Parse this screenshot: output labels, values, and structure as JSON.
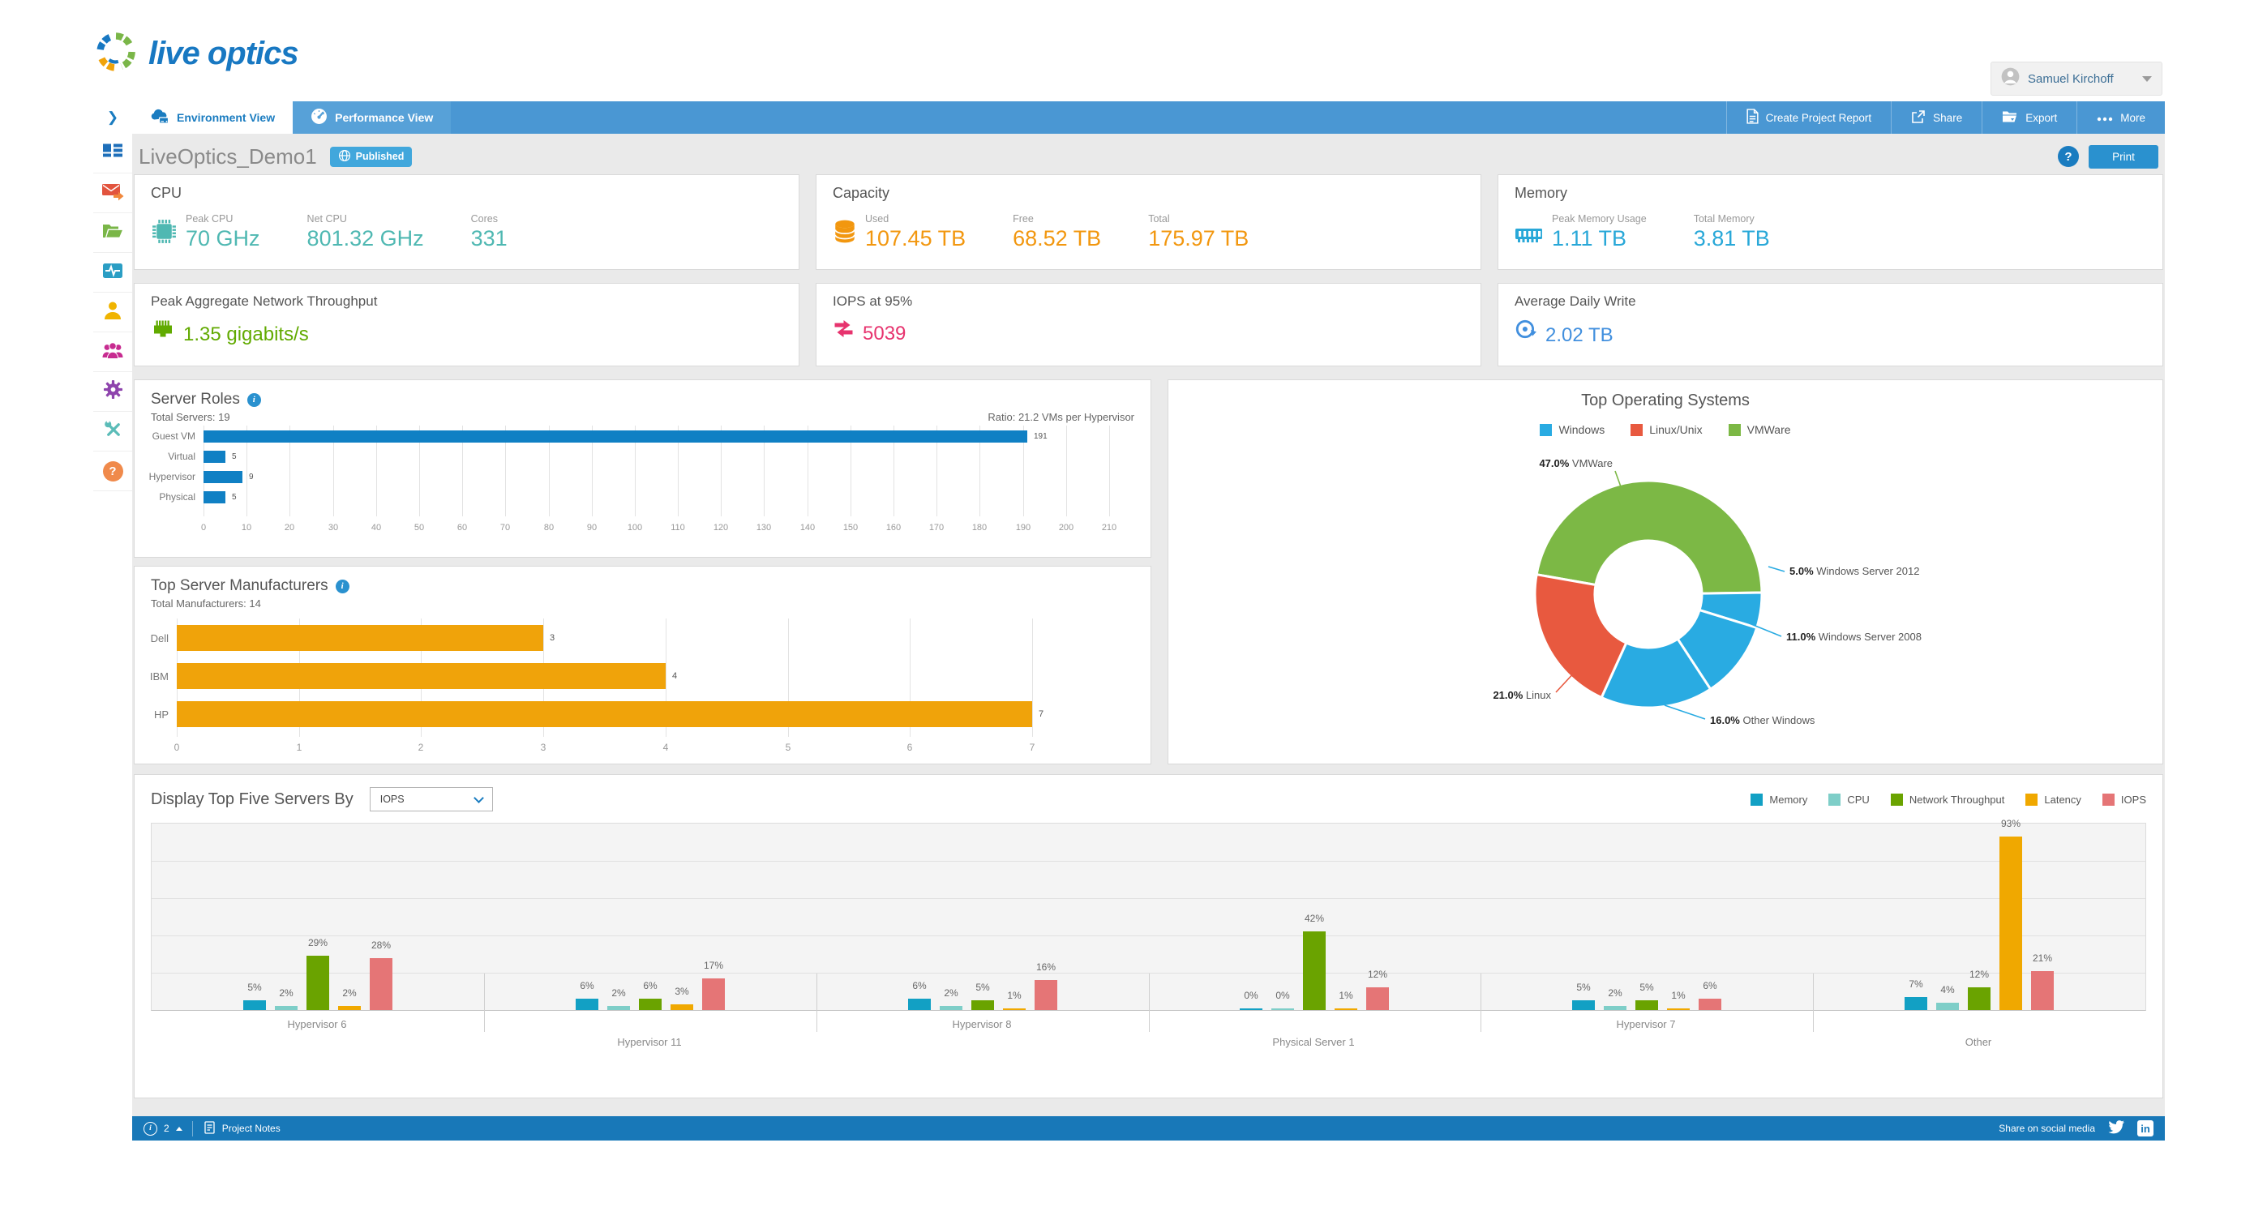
{
  "header": {
    "logo_text": "live optics",
    "user_name": "Samuel Kirchoff"
  },
  "navbar": {
    "collapse_icon": "❯",
    "tabs": [
      {
        "label": "Environment View",
        "icon": "cloud-server-icon",
        "active": true
      },
      {
        "label": "Performance View",
        "icon": "gauge-icon",
        "active": false
      }
    ],
    "actions": [
      {
        "label": "Create Project Report",
        "icon": "document-icon"
      },
      {
        "label": "Share",
        "icon": "share-icon"
      },
      {
        "label": "Export",
        "icon": "export-folder-icon"
      },
      {
        "label": "More",
        "icon": "ellipsis-icon"
      }
    ]
  },
  "sidebar": {
    "items": [
      {
        "icon": "dashboard-icon",
        "color": "#1e6fba"
      },
      {
        "icon": "mail-forward-icon",
        "color": "#e2543e"
      },
      {
        "icon": "open-folder-icon",
        "color": "#7ab648"
      },
      {
        "icon": "monitor-pulse-icon",
        "color": "#2b9ec4"
      },
      {
        "icon": "user-icon",
        "color": "#f0b400"
      },
      {
        "icon": "team-icon",
        "color": "#c72b90"
      },
      {
        "icon": "gear-icon",
        "color": "#8e44ad"
      },
      {
        "icon": "tools-icon",
        "color": "#5bbcb8"
      },
      {
        "icon": "help-icon",
        "color": "#f08a4b",
        "glyph": "?"
      }
    ]
  },
  "title_bar": {
    "project_name": "LiveOptics_Demo1",
    "status_badge": "Published",
    "help_label": "?",
    "print_label": "Print"
  },
  "stat_cards": {
    "cpu": {
      "title": "CPU",
      "color": "#4fb8b2",
      "metrics": [
        {
          "label": "Peak CPU",
          "value": "70 GHz"
        },
        {
          "label": "Net CPU",
          "value": "801.32 GHz"
        },
        {
          "label": "Cores",
          "value": "331"
        }
      ]
    },
    "capacity": {
      "title": "Capacity",
      "color": "#f2970f",
      "metrics": [
        {
          "label": "Used",
          "value": "107.45 TB"
        },
        {
          "label": "Free",
          "value": "68.52 TB"
        },
        {
          "label": "Total",
          "value": "175.97 TB"
        }
      ]
    },
    "memory": {
      "title": "Memory",
      "color": "#29a8d8",
      "metrics": [
        {
          "label": "Peak Memory Usage",
          "value": "1.11 TB"
        },
        {
          "label": "Total Memory",
          "value": "3.81 TB"
        }
      ]
    },
    "network": {
      "title": "Peak Aggregate Network Throughput",
      "color": "#61aa00",
      "value": "1.35 gigabits/s"
    },
    "iops": {
      "title": "IOPS at 95%",
      "color": "#e7336e",
      "value": "5039"
    },
    "daily_write": {
      "title": "Average Daily Write",
      "color": "#418fde",
      "value": "2.02 TB"
    }
  },
  "chart_data": [
    {
      "id": "server_roles",
      "type": "bar",
      "orientation": "horizontal",
      "title": "Server Roles",
      "subtitle_left": "Total Servers: 19",
      "subtitle_right": "Ratio: 21.2 VMs per Hypervisor",
      "categories": [
        "Guest VM",
        "Virtual",
        "Hypervisor",
        "Physical"
      ],
      "values": [
        191,
        5,
        9,
        5
      ],
      "xlim": [
        0,
        210
      ],
      "xticks_step": 10,
      "bar_color": "#1080c4",
      "grid": true
    },
    {
      "id": "top_server_manufacturers",
      "type": "bar",
      "orientation": "horizontal",
      "title": "Top Server Manufacturers",
      "subtitle_left": "Total Manufacturers: 14",
      "categories": [
        "Dell",
        "IBM",
        "HP"
      ],
      "values": [
        3,
        4,
        7
      ],
      "xlim": [
        0,
        7
      ],
      "xticks_step": 1,
      "bar_color": "#f0a30a",
      "grid": true
    },
    {
      "id": "top_operating_systems",
      "type": "pie",
      "donut": true,
      "title": "Top Operating Systems",
      "legend": [
        {
          "label": "Windows",
          "color": "#29abe2"
        },
        {
          "label": "Linux/Unix",
          "color": "#e8593f"
        },
        {
          "label": "VMWare",
          "color": "#7cb845"
        }
      ],
      "slices": [
        {
          "label": "VMWare",
          "pct": 47.0,
          "color": "#7cb845"
        },
        {
          "label": "Windows Server 2012",
          "pct": 5.0,
          "color": "#29abe2"
        },
        {
          "label": "Windows Server 2008",
          "pct": 11.0,
          "color": "#29abe2"
        },
        {
          "label": "Other Windows",
          "pct": 16.0,
          "color": "#29abe2"
        },
        {
          "label": "Linux",
          "pct": 21.0,
          "color": "#e8593f"
        }
      ],
      "start_angle_deg": 280
    },
    {
      "id": "top_five_servers",
      "type": "bar",
      "orientation": "vertical",
      "control_label": "Display Top Five Servers By",
      "control_value": "IOPS",
      "categories": [
        "Hypervisor 6",
        "Hypervisor 11",
        "Hypervisor 8",
        "Physical Server 1",
        "Hypervisor 7",
        "Other"
      ],
      "series": [
        {
          "name": "Memory",
          "color": "#12a0c4",
          "values": [
            5,
            6,
            6,
            0,
            5,
            7
          ]
        },
        {
          "name": "CPU",
          "color": "#7ecec8",
          "values": [
            2,
            2,
            2,
            0,
            2,
            4
          ]
        },
        {
          "name": "Network Throughput",
          "color": "#6aa300",
          "values": [
            29,
            6,
            5,
            42,
            5,
            12
          ]
        },
        {
          "name": "Latency",
          "color": "#f0a800",
          "values": [
            2,
            3,
            1,
            1,
            1,
            93
          ]
        },
        {
          "name": "IOPS",
          "color": "#e57576",
          "values": [
            28,
            17,
            16,
            12,
            6,
            21
          ]
        }
      ],
      "ylim": [
        0,
        100
      ],
      "grid": true,
      "legend_position": "top-right",
      "value_suffix": "%"
    }
  ],
  "footer": {
    "info_count": "2",
    "notes_label": "Project Notes",
    "share_label": "Share on social media"
  }
}
